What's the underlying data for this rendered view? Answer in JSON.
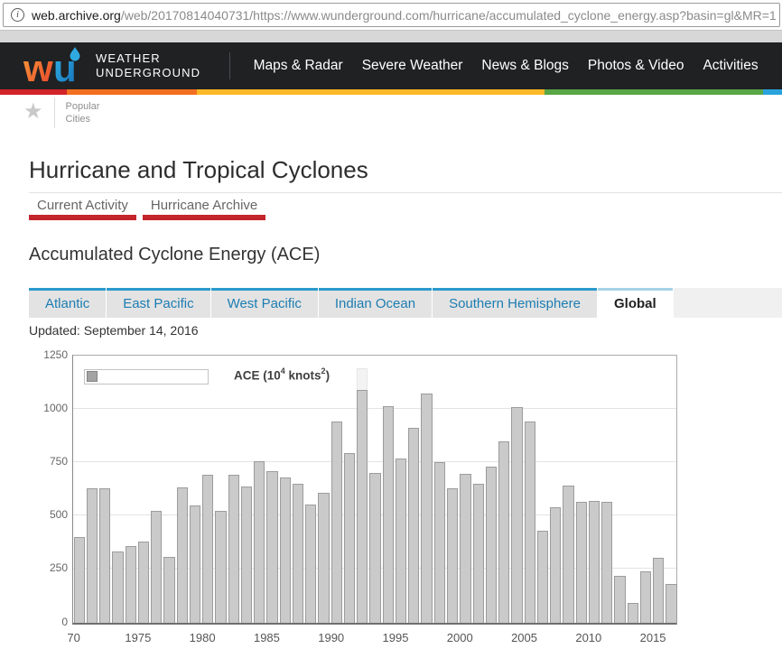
{
  "browser": {
    "url_domain": "web.archive.org",
    "url_path": "/web/20170814040731/https://www.wunderground.com/hurricane/accumulated_cyclone_energy.asp?basin=gl&MR=1"
  },
  "header": {
    "logo": {
      "line1": "WEATHER",
      "line2": "UNDERGROUND"
    },
    "nav": [
      "Maps & Radar",
      "Severe Weather",
      "News & Blogs",
      "Photos & Video",
      "Activities"
    ]
  },
  "rainbow_colors": [
    "#d2232a",
    "#f26f21",
    "#fcb826",
    "#58a646",
    "#2aa3dc"
  ],
  "popular": {
    "line1": "Popular",
    "line2": "Cities"
  },
  "page": {
    "title": "Hurricane and Tropical Cyclones",
    "section_title": "Accumulated Cyclone Energy (ACE)",
    "updated": "Updated: September 14, 2016"
  },
  "subnav": [
    {
      "label": "Current Activity"
    },
    {
      "label": "Hurricane Archive"
    }
  ],
  "basin_tabs": [
    {
      "label": "Atlantic",
      "active": false
    },
    {
      "label": "East Pacific",
      "active": false
    },
    {
      "label": "West Pacific",
      "active": false
    },
    {
      "label": "Indian Ocean",
      "active": false
    },
    {
      "label": "Southern Hemisphere",
      "active": false
    },
    {
      "label": "Global",
      "active": true
    }
  ],
  "chart_data": {
    "type": "bar",
    "title": "ACE (10^4 knots^2)",
    "legend": {
      "prefix": "ACE (10",
      "sup1": "4",
      "mid": " knots",
      "sup2": "2",
      "suffix": ")"
    },
    "legend_position": "top-left",
    "grid": true,
    "ylim": [
      0,
      1250
    ],
    "yticks": [
      0,
      250,
      500,
      750,
      1000,
      1250
    ],
    "x": [
      1970,
      1971,
      1972,
      1973,
      1974,
      1975,
      1976,
      1977,
      1978,
      1979,
      1980,
      1981,
      1982,
      1983,
      1984,
      1985,
      1986,
      1987,
      1988,
      1989,
      1990,
      1991,
      1992,
      1993,
      1994,
      1995,
      1996,
      1997,
      1998,
      1999,
      2000,
      2001,
      2002,
      2003,
      2004,
      2005,
      2006,
      2007,
      2008,
      2009,
      2010,
      2011,
      2012,
      2013,
      2014,
      2015,
      2016
    ],
    "values": [
      400,
      626,
      628,
      330,
      357,
      378,
      522,
      308,
      633,
      549,
      690,
      521,
      691,
      638,
      755,
      707,
      680,
      650,
      551,
      605,
      941,
      791,
      1088,
      700,
      1011,
      769,
      912,
      1070,
      750,
      628,
      694,
      649,
      727,
      846,
      1008,
      941,
      429,
      541,
      640,
      564,
      567,
      566,
      220,
      91,
      240,
      302,
      181
    ],
    "xlabel_ticks": [
      {
        "year": 1970,
        "label": "70"
      },
      {
        "year": 1975,
        "label": "1975"
      },
      {
        "year": 1980,
        "label": "1980"
      },
      {
        "year": 1985,
        "label": "1985"
      },
      {
        "year": 1990,
        "label": "1990"
      },
      {
        "year": 1995,
        "label": "1995"
      },
      {
        "year": 2000,
        "label": "2000"
      },
      {
        "year": 2005,
        "label": "2005"
      },
      {
        "year": 2010,
        "label": "2010"
      },
      {
        "year": 2015,
        "label": "2015"
      }
    ],
    "highlight": {
      "year": 1992,
      "top_value": 1190
    },
    "colors": {
      "bar_fill": "#cacaca",
      "bar_border": "#9c9c9c",
      "highlight_fill": "#f3f3f3"
    }
  }
}
